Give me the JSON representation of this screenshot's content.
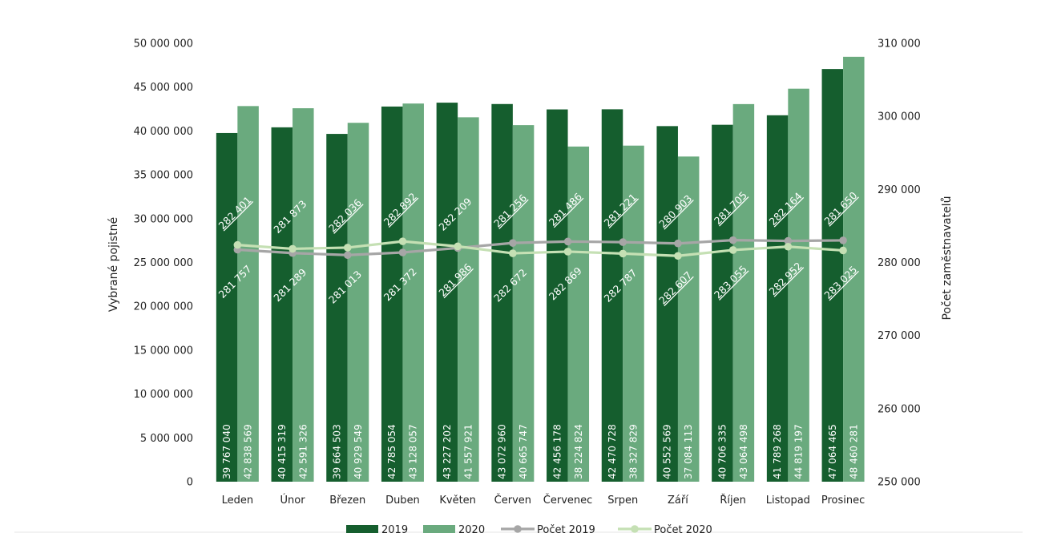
{
  "chart_data": {
    "type": "bar",
    "categories": [
      "Leden",
      "Únor",
      "Březen",
      "Duben",
      "Květen",
      "Červen",
      "Červenec",
      "Srpen",
      "Září",
      "Říjen",
      "Listopad",
      "Prosinec"
    ],
    "series": [
      {
        "name": "2019",
        "axis": "left",
        "kind": "bar",
        "values": [
          39767040,
          40415319,
          39664503,
          42785054,
          43227202,
          43072960,
          42456178,
          42470728,
          40552569,
          40706335,
          41789268,
          47064465
        ],
        "labels": [
          "39 767 040",
          "40 415 319",
          "39 664 503",
          "42 785 054",
          "43 227 202",
          "43 072 960",
          "42 456 178",
          "42 470 728",
          "40 552 569",
          "40 706 335",
          "41 789 268",
          "47 064 465"
        ]
      },
      {
        "name": "2020",
        "axis": "left",
        "kind": "bar",
        "values": [
          42838569,
          42591326,
          40929549,
          43128057,
          41557921,
          40665747,
          38224824,
          38327829,
          37084113,
          43064498,
          44819197,
          48460281
        ],
        "labels": [
          "42 838 569",
          "42 591 326",
          "40 929 549",
          "43 128 057",
          "41 557 921",
          "40 665 747",
          "38 224 824",
          "38 327 829",
          "37 084 113",
          "43 064 498",
          "44 819 197",
          "48 460 281"
        ]
      },
      {
        "name": "Počet 2019",
        "axis": "right",
        "kind": "line",
        "values": [
          281757,
          281289,
          281013,
          281372,
          281986,
          282672,
          282869,
          282787,
          282607,
          283055,
          282952,
          283025
        ],
        "labels": [
          "281 757",
          "281 289",
          "281 013",
          "281 372",
          "281 986",
          "282 672",
          "282 869",
          "282 787",
          "282 607",
          "283 055",
          "282 952",
          "283 025"
        ]
      },
      {
        "name": "Počet 2020",
        "axis": "right",
        "kind": "line",
        "values": [
          282401,
          281873,
          282036,
          282892,
          282209,
          281256,
          281486,
          281221,
          280903,
          281705,
          282164,
          281650
        ],
        "labels": [
          "282 401",
          "281 873",
          "282 036",
          "282 892",
          "282 209",
          "281 256",
          "281 486",
          "281 221",
          "280 903",
          "281 705",
          "282 164",
          "281 650"
        ]
      }
    ],
    "ylabel": "Vybrané pojistné",
    "y2label": "Počet zaměstnavatelů",
    "ylim": [
      0,
      50000000
    ],
    "y2lim": [
      250000,
      310000
    ],
    "yticks": [
      "0",
      "5 000 000",
      "10 000 000",
      "15 000 000",
      "20 000 000",
      "25 000 000",
      "30 000 000",
      "35 000 000",
      "40 000 000",
      "45 000 000",
      "50 000 000"
    ],
    "y2ticks": [
      "250 000",
      "260 000",
      "270 000",
      "280 000",
      "290 000",
      "300 000",
      "310 000"
    ],
    "grid": false,
    "legend": "bottom",
    "colors": {
      "2019": "#155e2e",
      "2020": "#6aaa7e",
      "Počet 2019": "#a6a6a6",
      "Počet 2020": "#c5e0b4"
    }
  }
}
